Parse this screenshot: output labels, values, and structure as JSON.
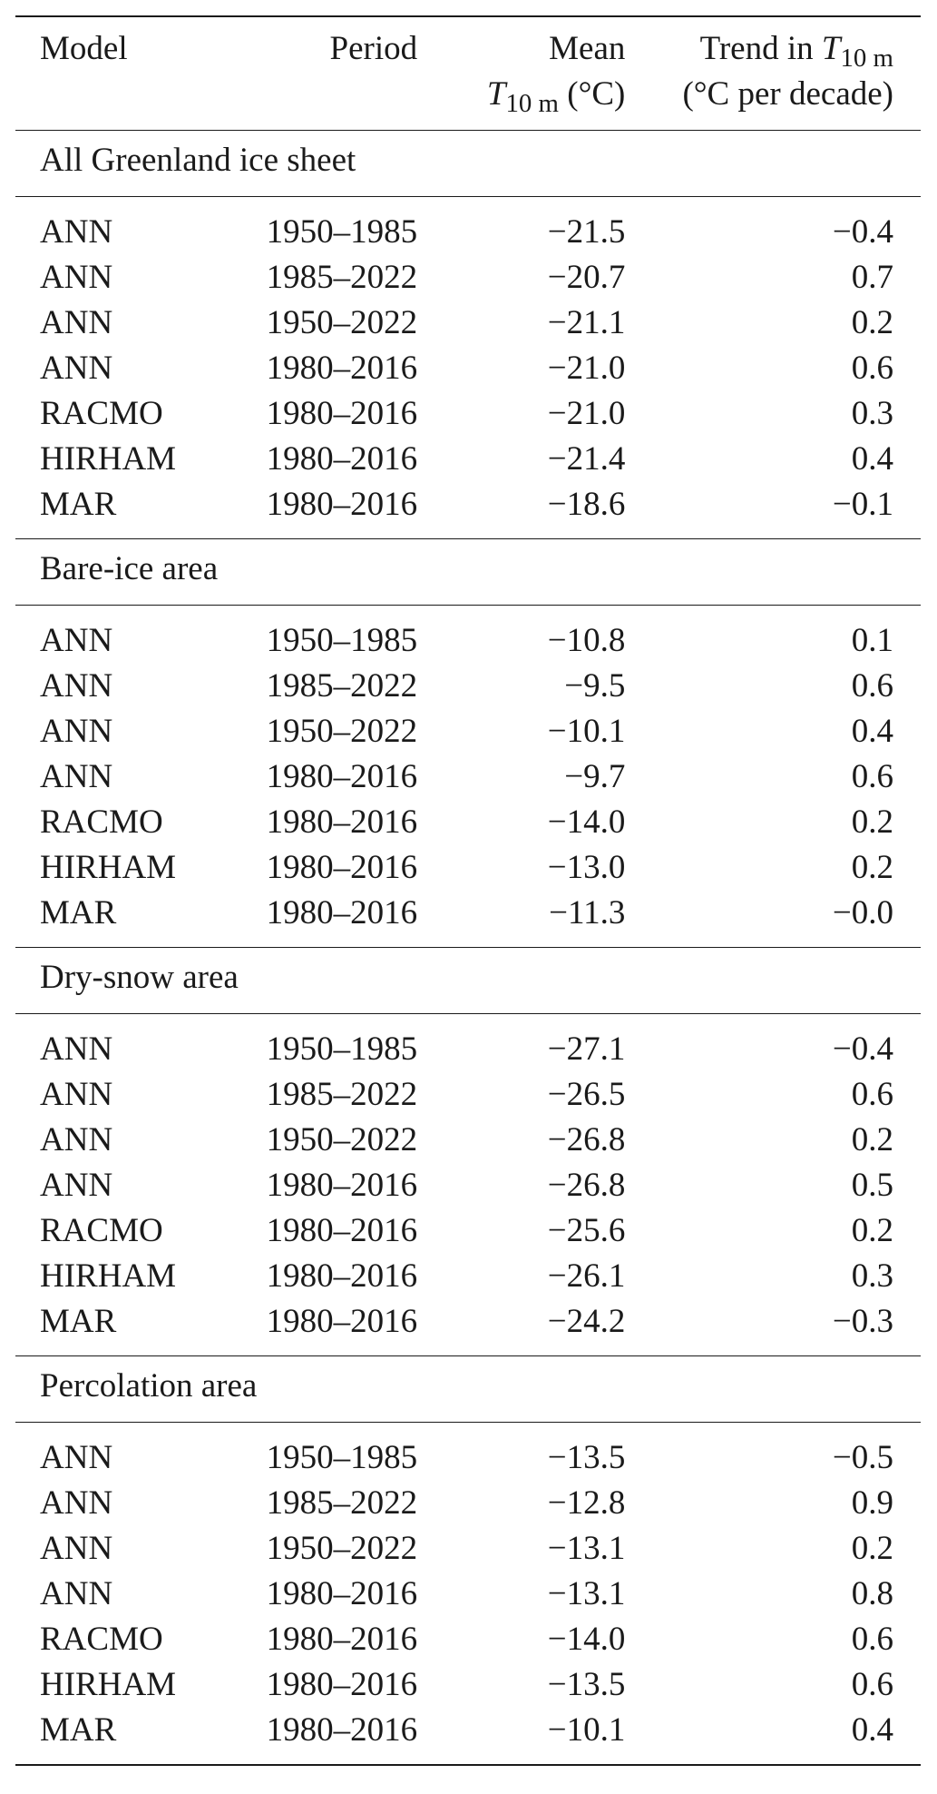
{
  "header": {
    "model": "Model",
    "period": "Period",
    "mean_line1": "Mean",
    "mean_line2_var": "T",
    "mean_line2_sub": "10 m",
    "mean_line2_unit": "(°C)",
    "trend_line1_text": "Trend in",
    "trend_line1_var": "T",
    "trend_line1_sub": "10 m",
    "trend_line2": "(°C per decade)"
  },
  "sections": [
    {
      "title": "All Greenland ice sheet",
      "rows": [
        {
          "model": "ANN",
          "period": "1950–1985",
          "mean": "−21.5",
          "trend": "−0.4"
        },
        {
          "model": "ANN",
          "period": "1985–2022",
          "mean": "−20.7",
          "trend": "0.7"
        },
        {
          "model": "ANN",
          "period": "1950–2022",
          "mean": "−21.1",
          "trend": "0.2"
        },
        {
          "model": "ANN",
          "period": "1980–2016",
          "mean": "−21.0",
          "trend": "0.6"
        },
        {
          "model": "RACMO",
          "period": "1980–2016",
          "mean": "−21.0",
          "trend": "0.3"
        },
        {
          "model": "HIRHAM",
          "period": "1980–2016",
          "mean": "−21.4",
          "trend": "0.4"
        },
        {
          "model": "MAR",
          "period": "1980–2016",
          "mean": "−18.6",
          "trend": "−0.1"
        }
      ]
    },
    {
      "title": "Bare-ice area",
      "rows": [
        {
          "model": "ANN",
          "period": "1950–1985",
          "mean": "−10.8",
          "trend": "0.1"
        },
        {
          "model": "ANN",
          "period": "1985–2022",
          "mean": "−9.5",
          "trend": "0.6"
        },
        {
          "model": "ANN",
          "period": "1950–2022",
          "mean": "−10.1",
          "trend": "0.4"
        },
        {
          "model": "ANN",
          "period": "1980–2016",
          "mean": "−9.7",
          "trend": "0.6"
        },
        {
          "model": "RACMO",
          "period": "1980–2016",
          "mean": "−14.0",
          "trend": "0.2"
        },
        {
          "model": "HIRHAM",
          "period": "1980–2016",
          "mean": "−13.0",
          "trend": "0.2"
        },
        {
          "model": "MAR",
          "period": "1980–2016",
          "mean": "−11.3",
          "trend": "−0.0"
        }
      ]
    },
    {
      "title": "Dry-snow area",
      "rows": [
        {
          "model": "ANN",
          "period": "1950–1985",
          "mean": "−27.1",
          "trend": "−0.4"
        },
        {
          "model": "ANN",
          "period": "1985–2022",
          "mean": "−26.5",
          "trend": "0.6"
        },
        {
          "model": "ANN",
          "period": "1950–2022",
          "mean": "−26.8",
          "trend": "0.2"
        },
        {
          "model": "ANN",
          "period": "1980–2016",
          "mean": "−26.8",
          "trend": "0.5"
        },
        {
          "model": "RACMO",
          "period": "1980–2016",
          "mean": "−25.6",
          "trend": "0.2"
        },
        {
          "model": "HIRHAM",
          "period": "1980–2016",
          "mean": "−26.1",
          "trend": "0.3"
        },
        {
          "model": "MAR",
          "period": "1980–2016",
          "mean": "−24.2",
          "trend": "−0.3"
        }
      ]
    },
    {
      "title": "Percolation area",
      "rows": [
        {
          "model": "ANN",
          "period": "1950–1985",
          "mean": "−13.5",
          "trend": "−0.5"
        },
        {
          "model": "ANN",
          "period": "1985–2022",
          "mean": "−12.8",
          "trend": "0.9"
        },
        {
          "model": "ANN",
          "period": "1950–2022",
          "mean": "−13.1",
          "trend": "0.2"
        },
        {
          "model": "ANN",
          "period": "1980–2016",
          "mean": "−13.1",
          "trend": "0.8"
        },
        {
          "model": "RACMO",
          "period": "1980–2016",
          "mean": "−14.0",
          "trend": "0.6"
        },
        {
          "model": "HIRHAM",
          "period": "1980–2016",
          "mean": "−13.5",
          "trend": "0.6"
        },
        {
          "model": "MAR",
          "period": "1980–2016",
          "mean": "−10.1",
          "trend": "0.4"
        }
      ]
    }
  ]
}
